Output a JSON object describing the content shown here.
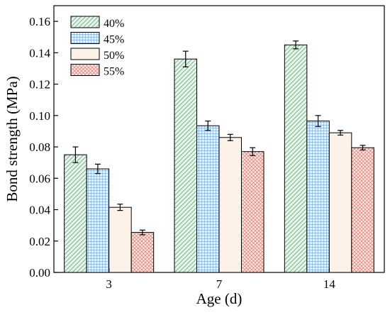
{
  "chart_data": {
    "type": "bar",
    "xlabel": "Age (d)",
    "ylabel": "Bond strength (MPa)",
    "categories": [
      "3",
      "7",
      "14"
    ],
    "ylim": [
      0,
      0.17
    ],
    "yticks": [
      "0.00",
      "0.02",
      "0.04",
      "0.06",
      "0.08",
      "0.10",
      "0.12",
      "0.14",
      "0.16"
    ],
    "legend_position": "top-left",
    "series": [
      {
        "name": "40%",
        "values": [
          0.075,
          0.136,
          0.145
        ],
        "errors": [
          0.005,
          0.005,
          0.0025
        ],
        "color": "#58b07a",
        "fill": "#e6f5ea",
        "pattern": "diagonal-up"
      },
      {
        "name": "45%",
        "values": [
          0.066,
          0.0935,
          0.0965
        ],
        "errors": [
          0.003,
          0.003,
          0.0035
        ],
        "color": "#5b9bd5",
        "fill": "#e9f2fb",
        "pattern": "grid"
      },
      {
        "name": "50%",
        "values": [
          0.0415,
          0.086,
          0.089
        ],
        "errors": [
          0.002,
          0.002,
          0.0015
        ],
        "color": "#e9b98c",
        "fill": "#fdf2e7",
        "pattern": "light"
      },
      {
        "name": "55%",
        "values": [
          0.0255,
          0.077,
          0.0795
        ],
        "errors": [
          0.0015,
          0.0025,
          0.0015
        ],
        "color": "#e07a6e",
        "fill": "#fbe6e3",
        "pattern": "crosshatch"
      }
    ]
  }
}
